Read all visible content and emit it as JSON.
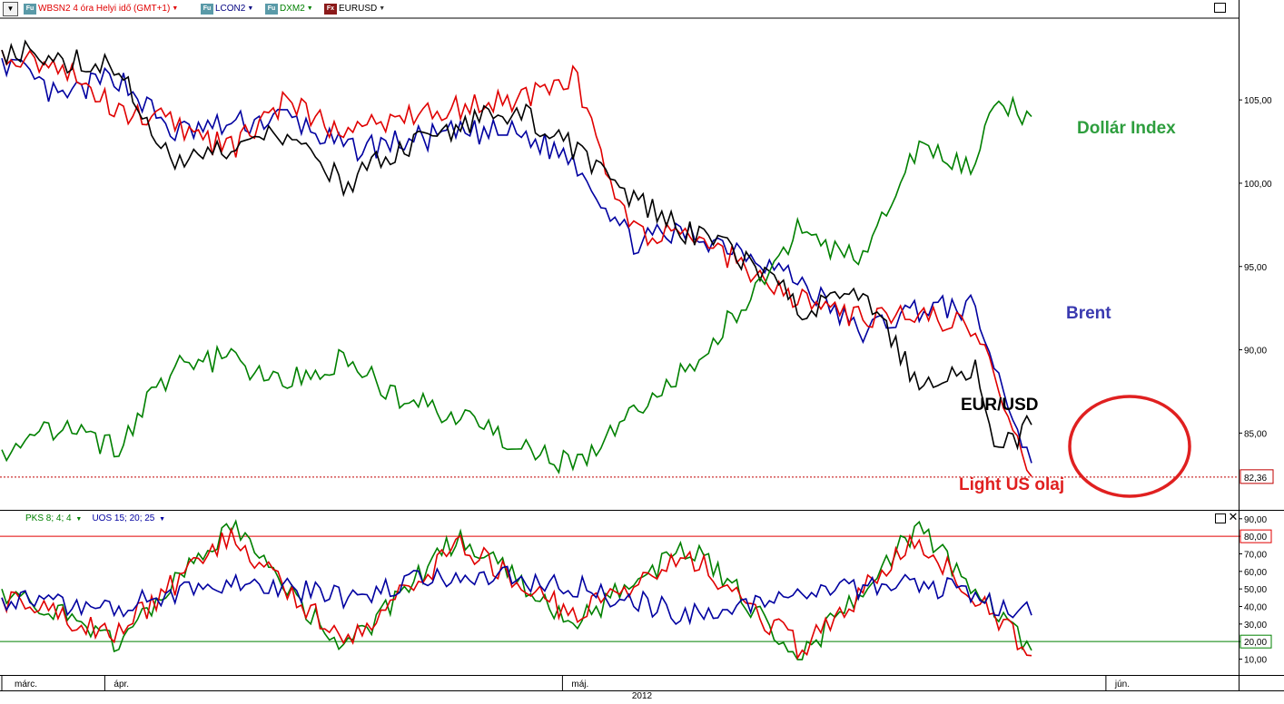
{
  "toolbar": {
    "series": [
      {
        "badge": "Fu",
        "label": "WBSN2 4 óra Helyi idő (GMT+1)",
        "color": "#e00000",
        "badge_color": "#5a9aa8"
      },
      {
        "badge": "Fu",
        "label": "LCON2",
        "color": "#000080",
        "badge_color": "#5a9aa8"
      },
      {
        "badge": "Fu",
        "label": "DXM2",
        "color": "#008000",
        "badge_color": "#5a9aa8"
      },
      {
        "badge": "Fx",
        "label": "EURUSD",
        "color": "#000000",
        "badge_color": "#8b1a1a"
      }
    ]
  },
  "chart_data": [
    {
      "type": "line",
      "panel": "main",
      "yticks": [
        "105,00",
        "100,00",
        "95,00",
        "90,00",
        "85,00"
      ],
      "ylim": [
        80.5,
        109.8
      ],
      "price_line": {
        "value": 82.36,
        "label": "82,36",
        "color": "#c00000"
      },
      "x": [
        0,
        0.05,
        0.1,
        0.15,
        0.2,
        0.25,
        0.3,
        0.35,
        0.4,
        0.45,
        0.5,
        0.55,
        0.6,
        0.65,
        0.7,
        0.75,
        0.8,
        0.85,
        0.87,
        0.9
      ],
      "series": [
        {
          "name": "Brent",
          "color": "#0000a0",
          "values": [
            107.5,
            105,
            106.5,
            103,
            103.5,
            104,
            102,
            102.5,
            103,
            103,
            101.5,
            96.5,
            97,
            96,
            94,
            91,
            92.5,
            92.5,
            88.5,
            83.2
          ]
        },
        {
          "name": "Light US olaj",
          "color": "#e00000",
          "values": [
            108,
            107,
            104.5,
            103.5,
            102,
            105,
            103,
            104,
            104.5,
            105,
            106.5,
            97,
            97,
            95,
            93,
            92,
            92,
            91.5,
            87.5,
            82.4
          ]
        },
        {
          "name": "EUR/USD",
          "color": "#000000",
          "values": [
            108,
            107.5,
            107,
            101,
            102,
            103,
            100,
            102,
            103.5,
            104.5,
            102,
            99,
            97,
            95.5,
            92.5,
            93.5,
            88,
            89,
            84,
            85.5
          ]
        },
        {
          "name": "Dollár Index",
          "color": "#008000",
          "values": [
            84,
            85.5,
            84,
            89,
            89.5,
            88,
            89.5,
            87,
            86,
            84,
            83,
            86,
            89,
            93,
            97.5,
            95,
            102,
            101,
            105,
            104
          ]
        }
      ],
      "annotations": [
        {
          "text": "Dollár Index",
          "color": "#2e9e3e"
        },
        {
          "text": "Brent",
          "color": "#3a3ab0"
        },
        {
          "text": "EUR/USD",
          "color": "#000000"
        },
        {
          "text": "Light US olaj",
          "color": "#e02020"
        }
      ]
    },
    {
      "type": "line",
      "panel": "oscillator",
      "legend": [
        {
          "label": "PKS 8; 4; 4",
          "color": "#008000"
        },
        {
          "label": "UOS 15; 20; 25",
          "color": "#0000a0"
        }
      ],
      "yticks": [
        "90,00",
        "80,00",
        "70,00",
        "60,00",
        "50,00",
        "40,00",
        "30,00",
        "20,00",
        "10,00"
      ],
      "ylim": [
        2,
        93
      ],
      "levels": [
        {
          "value": 80,
          "label": "80,00",
          "color": "#e00000"
        },
        {
          "value": 20,
          "label": "20,00",
          "color": "#008000"
        }
      ],
      "x": [
        0,
        0.1,
        0.2,
        0.3,
        0.4,
        0.5,
        0.6,
        0.7,
        0.8,
        0.9
      ],
      "series": [
        {
          "name": "PKS",
          "color": "#008000",
          "values": [
            50,
            20,
            85,
            15,
            80,
            30,
            75,
            12,
            85,
            15
          ]
        },
        {
          "name": "PKS signal",
          "color": "#e00000",
          "values": [
            45,
            25,
            80,
            20,
            75,
            35,
            70,
            15,
            80,
            12
          ]
        },
        {
          "name": "UOS",
          "color": "#0000a0",
          "values": [
            45,
            40,
            55,
            45,
            60,
            52,
            35,
            45,
            55,
            35
          ]
        }
      ]
    }
  ],
  "xaxis": {
    "months": [
      "márc.",
      "ápr.",
      "máj.",
      "jún."
    ],
    "year": "2012"
  }
}
